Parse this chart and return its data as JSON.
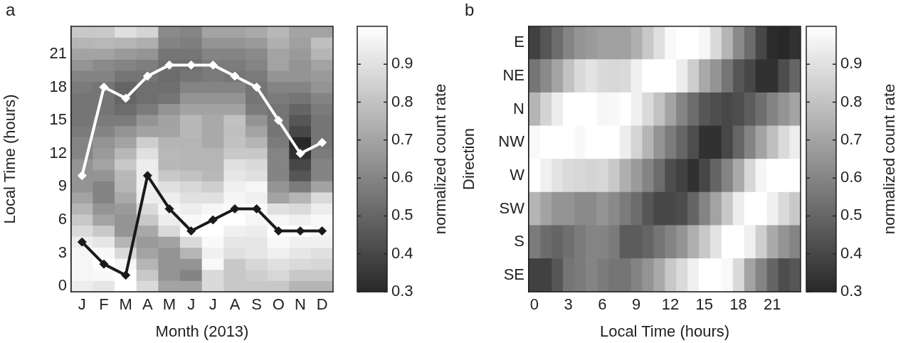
{
  "chart_data": [
    {
      "type": "heatmap",
      "title": "a",
      "xlabel": "Month (2013)",
      "ylabel": "Local Time (hours)",
      "clabel": "normalized count rate",
      "categories": [
        "J",
        "F",
        "M",
        "A",
        "M",
        "J",
        "J",
        "A",
        "S",
        "O",
        "N",
        "D"
      ],
      "ylim": [
        -0.5,
        23.5
      ],
      "yticks": [
        0,
        3,
        6,
        9,
        12,
        15,
        18,
        21
      ],
      "clim": [
        0.3,
        1.0
      ],
      "cticks": [
        0.3,
        0.4,
        0.5,
        0.6,
        0.7,
        0.8,
        0.9
      ],
      "marker": "diamond",
      "cells": [
        [
          0.82,
          0.82,
          0.9,
          0.86,
          0.62,
          0.6,
          0.7,
          0.7,
          0.72,
          0.77,
          0.7,
          0.7
        ],
        [
          0.76,
          0.77,
          0.76,
          0.74,
          0.6,
          0.58,
          0.65,
          0.65,
          0.67,
          0.74,
          0.69,
          0.79
        ],
        [
          0.7,
          0.7,
          0.67,
          0.65,
          0.55,
          0.55,
          0.6,
          0.6,
          0.62,
          0.7,
          0.67,
          0.76
        ],
        [
          0.65,
          0.62,
          0.6,
          0.58,
          0.53,
          0.53,
          0.57,
          0.57,
          0.6,
          0.7,
          0.65,
          0.7
        ],
        [
          0.6,
          0.6,
          0.55,
          0.55,
          0.52,
          0.55,
          0.57,
          0.55,
          0.57,
          0.65,
          0.65,
          0.67
        ],
        [
          0.57,
          0.55,
          0.5,
          0.53,
          0.53,
          0.6,
          0.6,
          0.6,
          0.55,
          0.6,
          0.6,
          0.65
        ],
        [
          0.55,
          0.55,
          0.5,
          0.53,
          0.55,
          0.65,
          0.65,
          0.65,
          0.55,
          0.57,
          0.55,
          0.6
        ],
        [
          0.55,
          0.55,
          0.52,
          0.57,
          0.65,
          0.7,
          0.7,
          0.7,
          0.57,
          0.55,
          0.5,
          0.57
        ],
        [
          0.55,
          0.57,
          0.57,
          0.65,
          0.7,
          0.77,
          0.72,
          0.8,
          0.65,
          0.55,
          0.45,
          0.55
        ],
        [
          0.57,
          0.6,
          0.65,
          0.7,
          0.7,
          0.77,
          0.72,
          0.79,
          0.7,
          0.55,
          0.4,
          0.55
        ],
        [
          0.6,
          0.65,
          0.7,
          0.84,
          0.76,
          0.76,
          0.72,
          0.8,
          0.76,
          0.57,
          0.3,
          0.55
        ],
        [
          0.6,
          0.67,
          0.77,
          0.9,
          0.77,
          0.76,
          0.76,
          0.82,
          0.82,
          0.6,
          0.33,
          0.57
        ],
        [
          0.65,
          0.7,
          0.82,
          0.94,
          0.77,
          0.76,
          0.76,
          0.9,
          0.88,
          0.6,
          0.4,
          0.6
        ],
        [
          0.65,
          0.65,
          0.77,
          0.94,
          0.82,
          0.8,
          0.77,
          0.92,
          0.9,
          0.6,
          0.45,
          0.6
        ],
        [
          0.65,
          0.6,
          0.76,
          0.95,
          0.9,
          0.87,
          0.84,
          0.95,
          0.97,
          0.65,
          0.57,
          0.7
        ],
        [
          0.7,
          0.6,
          0.72,
          0.94,
          0.94,
          0.9,
          0.9,
          0.97,
          0.95,
          0.7,
          0.76,
          0.88
        ],
        [
          0.76,
          0.65,
          0.67,
          0.88,
          0.97,
          0.94,
          0.97,
          0.98,
          0.98,
          0.9,
          0.88,
          0.94
        ],
        [
          0.82,
          0.7,
          0.65,
          0.82,
          0.94,
          0.98,
          1.0,
          1.0,
          0.97,
          0.97,
          0.95,
          0.98
        ],
        [
          0.88,
          0.82,
          0.65,
          0.72,
          0.88,
          1.0,
          1.0,
          0.95,
          0.94,
          1.0,
          1.0,
          0.97
        ],
        [
          0.94,
          0.92,
          0.76,
          0.67,
          0.7,
          0.88,
          0.98,
          0.92,
          0.92,
          0.98,
          0.95,
          0.95
        ],
        [
          0.97,
          0.98,
          0.88,
          0.7,
          0.65,
          0.76,
          0.95,
          0.9,
          0.92,
          0.95,
          0.92,
          0.9
        ],
        [
          0.97,
          1.0,
          0.97,
          0.76,
          0.65,
          0.65,
          0.98,
          0.82,
          0.87,
          0.9,
          0.88,
          0.87
        ],
        [
          0.97,
          0.98,
          1.0,
          0.82,
          0.65,
          0.6,
          0.88,
          0.82,
          0.84,
          0.87,
          0.82,
          0.82
        ],
        [
          0.94,
          0.92,
          1.0,
          0.88,
          0.7,
          0.7,
          0.88,
          0.82,
          0.82,
          0.82,
          0.76,
          0.76
        ]
      ],
      "series": [
        {
          "type": "line",
          "color": "#ffffff",
          "values": [
            10,
            18,
            17,
            19,
            20,
            20,
            20,
            19,
            18,
            15,
            12,
            13
          ]
        },
        {
          "type": "line",
          "color": "#1a1a1a",
          "values": [
            4,
            2,
            1,
            10,
            7,
            5,
            6,
            7,
            7,
            5,
            5,
            5
          ]
        }
      ]
    },
    {
      "type": "heatmap",
      "title": "b",
      "xlabel": "Local Time (hours)",
      "ylabel": "Direction",
      "clabel": "normalized count rate",
      "y_categories": [
        "E",
        "NE",
        "N",
        "NW",
        "W",
        "SW",
        "S",
        "SE"
      ],
      "xlim": [
        -0.5,
        23.5
      ],
      "xticks": [
        0,
        3,
        6,
        9,
        12,
        15,
        18,
        21
      ],
      "clim": [
        0.3,
        1.0
      ],
      "cticks": [
        0.3,
        0.4,
        0.5,
        0.6,
        0.7,
        0.8,
        0.9
      ],
      "cells": [
        [
          0.38,
          0.45,
          0.52,
          0.6,
          0.65,
          0.67,
          0.69,
          0.69,
          0.69,
          0.74,
          0.82,
          0.9,
          0.98,
          1.0,
          1.0,
          0.97,
          0.88,
          0.76,
          0.62,
          0.52,
          0.4,
          0.31,
          0.3,
          0.33
        ],
        [
          0.55,
          0.62,
          0.7,
          0.8,
          0.88,
          0.91,
          0.88,
          0.87,
          0.88,
          0.95,
          1.0,
          1.0,
          1.0,
          0.94,
          0.84,
          0.72,
          0.65,
          0.55,
          0.45,
          0.4,
          0.33,
          0.33,
          0.42,
          0.5
        ],
        [
          0.76,
          0.86,
          0.94,
          1.0,
          1.0,
          1.0,
          0.97,
          0.98,
          1.0,
          0.95,
          0.88,
          0.8,
          0.7,
          0.6,
          0.52,
          0.45,
          0.42,
          0.4,
          0.42,
          0.47,
          0.53,
          0.6,
          0.65,
          0.7
        ],
        [
          0.98,
          1.0,
          1.0,
          1.0,
          0.98,
          1.0,
          1.0,
          1.0,
          0.94,
          0.86,
          0.76,
          0.65,
          0.57,
          0.5,
          0.42,
          0.33,
          0.33,
          0.4,
          0.5,
          0.6,
          0.7,
          0.79,
          0.88,
          0.94
        ],
        [
          1.0,
          0.95,
          0.91,
          0.88,
          0.87,
          0.86,
          0.87,
          0.82,
          0.74,
          0.67,
          0.6,
          0.52,
          0.42,
          0.38,
          0.33,
          0.4,
          0.5,
          0.6,
          0.72,
          0.87,
          0.97,
          1.0,
          1.0,
          1.0
        ],
        [
          0.76,
          0.7,
          0.65,
          0.65,
          0.62,
          0.62,
          0.65,
          0.62,
          0.57,
          0.52,
          0.45,
          0.4,
          0.4,
          0.42,
          0.5,
          0.6,
          0.7,
          0.82,
          0.94,
          1.0,
          1.0,
          0.95,
          0.88,
          0.82
        ],
        [
          0.57,
          0.52,
          0.5,
          0.53,
          0.57,
          0.6,
          0.6,
          0.57,
          0.47,
          0.47,
          0.5,
          0.55,
          0.6,
          0.65,
          0.74,
          0.82,
          0.91,
          1.0,
          1.0,
          0.95,
          0.84,
          0.72,
          0.65,
          0.6
        ],
        [
          0.38,
          0.38,
          0.45,
          0.55,
          0.57,
          0.6,
          0.57,
          0.55,
          0.55,
          0.6,
          0.65,
          0.72,
          0.82,
          0.88,
          0.95,
          1.0,
          1.0,
          0.98,
          0.88,
          0.7,
          0.6,
          0.5,
          0.42,
          0.45
        ]
      ]
    }
  ]
}
